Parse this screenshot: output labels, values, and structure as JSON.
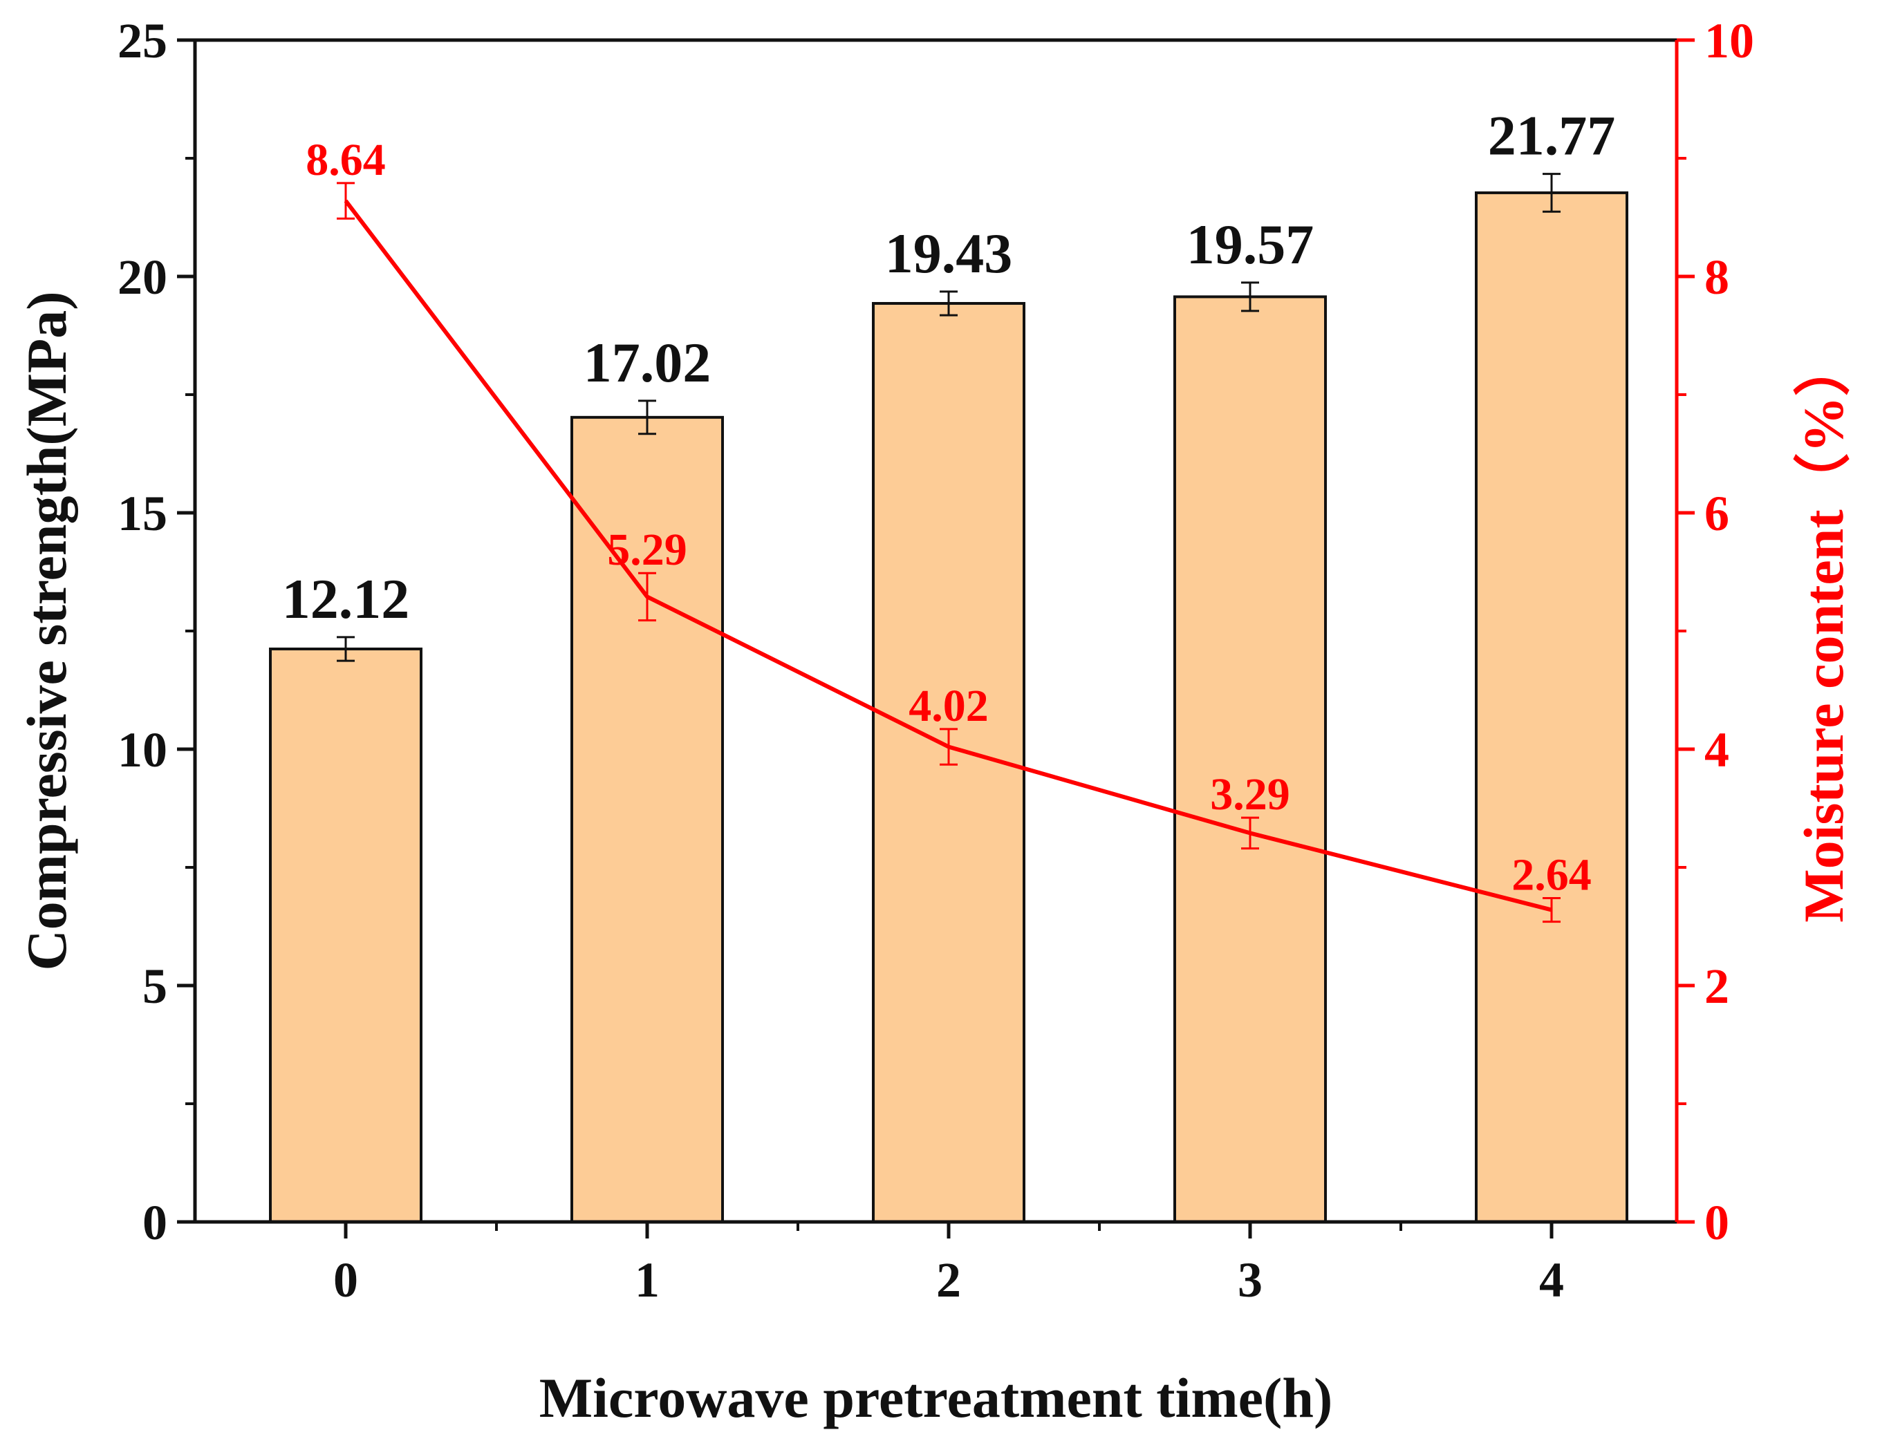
{
  "chart_data": {
    "type": "bar",
    "categories": [
      "0",
      "1",
      "2",
      "3",
      "4"
    ],
    "xlabel": "Microwave pretreatment time(h)",
    "series": [
      {
        "name": "Compressive strength",
        "type": "bar",
        "axis": "left",
        "values": [
          12.12,
          17.02,
          19.43,
          19.57,
          21.77
        ],
        "labels": [
          "12.12",
          "17.02",
          "19.43",
          "19.57",
          "21.77"
        ],
        "errors": [
          0.25,
          0.35,
          0.25,
          0.3,
          0.4
        ],
        "color": "#fdcc96"
      },
      {
        "name": "Moisture content",
        "type": "line",
        "axis": "right",
        "values": [
          8.64,
          5.29,
          4.02,
          3.29,
          2.64
        ],
        "labels": [
          "8.64",
          "5.29",
          "4.02",
          "3.29",
          "2.64"
        ],
        "errors": [
          0.15,
          0.2,
          0.15,
          0.13,
          0.1
        ],
        "color": "#ff0000"
      }
    ],
    "y_left": {
      "label": "Compressive strength(MPa)",
      "ylim": [
        0,
        25
      ],
      "ticks": [
        "0",
        "5",
        "10",
        "15",
        "20",
        "25"
      ],
      "color": "#000000"
    },
    "y_right": {
      "label": "Moisture content（%）",
      "ylim": [
        0,
        10
      ],
      "ticks": [
        "0",
        "2",
        "4",
        "6",
        "8",
        "10"
      ],
      "color": "#ff0000"
    }
  }
}
